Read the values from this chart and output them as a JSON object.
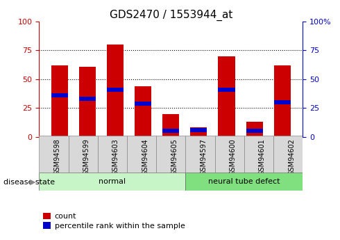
{
  "title": "GDS2470 / 1553944_at",
  "samples": [
    "GSM94598",
    "GSM94599",
    "GSM94603",
    "GSM94604",
    "GSM94605",
    "GSM94597",
    "GSM94600",
    "GSM94601",
    "GSM94602"
  ],
  "count_values": [
    62,
    61,
    80,
    44,
    20,
    8,
    70,
    13,
    62
  ],
  "percentile_values": [
    36,
    33,
    41,
    29,
    5,
    6,
    41,
    5,
    30
  ],
  "groups": [
    {
      "label": "normal",
      "start": 0,
      "end": 5,
      "color": "#c8f5c8"
    },
    {
      "label": "neural tube defect",
      "start": 5,
      "end": 9,
      "color": "#80e080"
    }
  ],
  "bar_color_red": "#cc0000",
  "bar_color_blue": "#0000cc",
  "ylim": [
    0,
    100
  ],
  "yticks": [
    0,
    25,
    50,
    75,
    100
  ],
  "grid_color": "black",
  "title_fontsize": 11,
  "tick_fontsize": 8,
  "label_fontsize": 8,
  "legend_label_count": "count",
  "legend_label_percentile": "percentile rank within the sample",
  "disease_state_label": "disease state",
  "background_color": "#ffffff",
  "plot_bg_color": "#ffffff",
  "xticklabel_bg": "#d8d8d8",
  "right_ytick_labels": [
    "0",
    "25",
    "50",
    "75",
    "100%"
  ]
}
